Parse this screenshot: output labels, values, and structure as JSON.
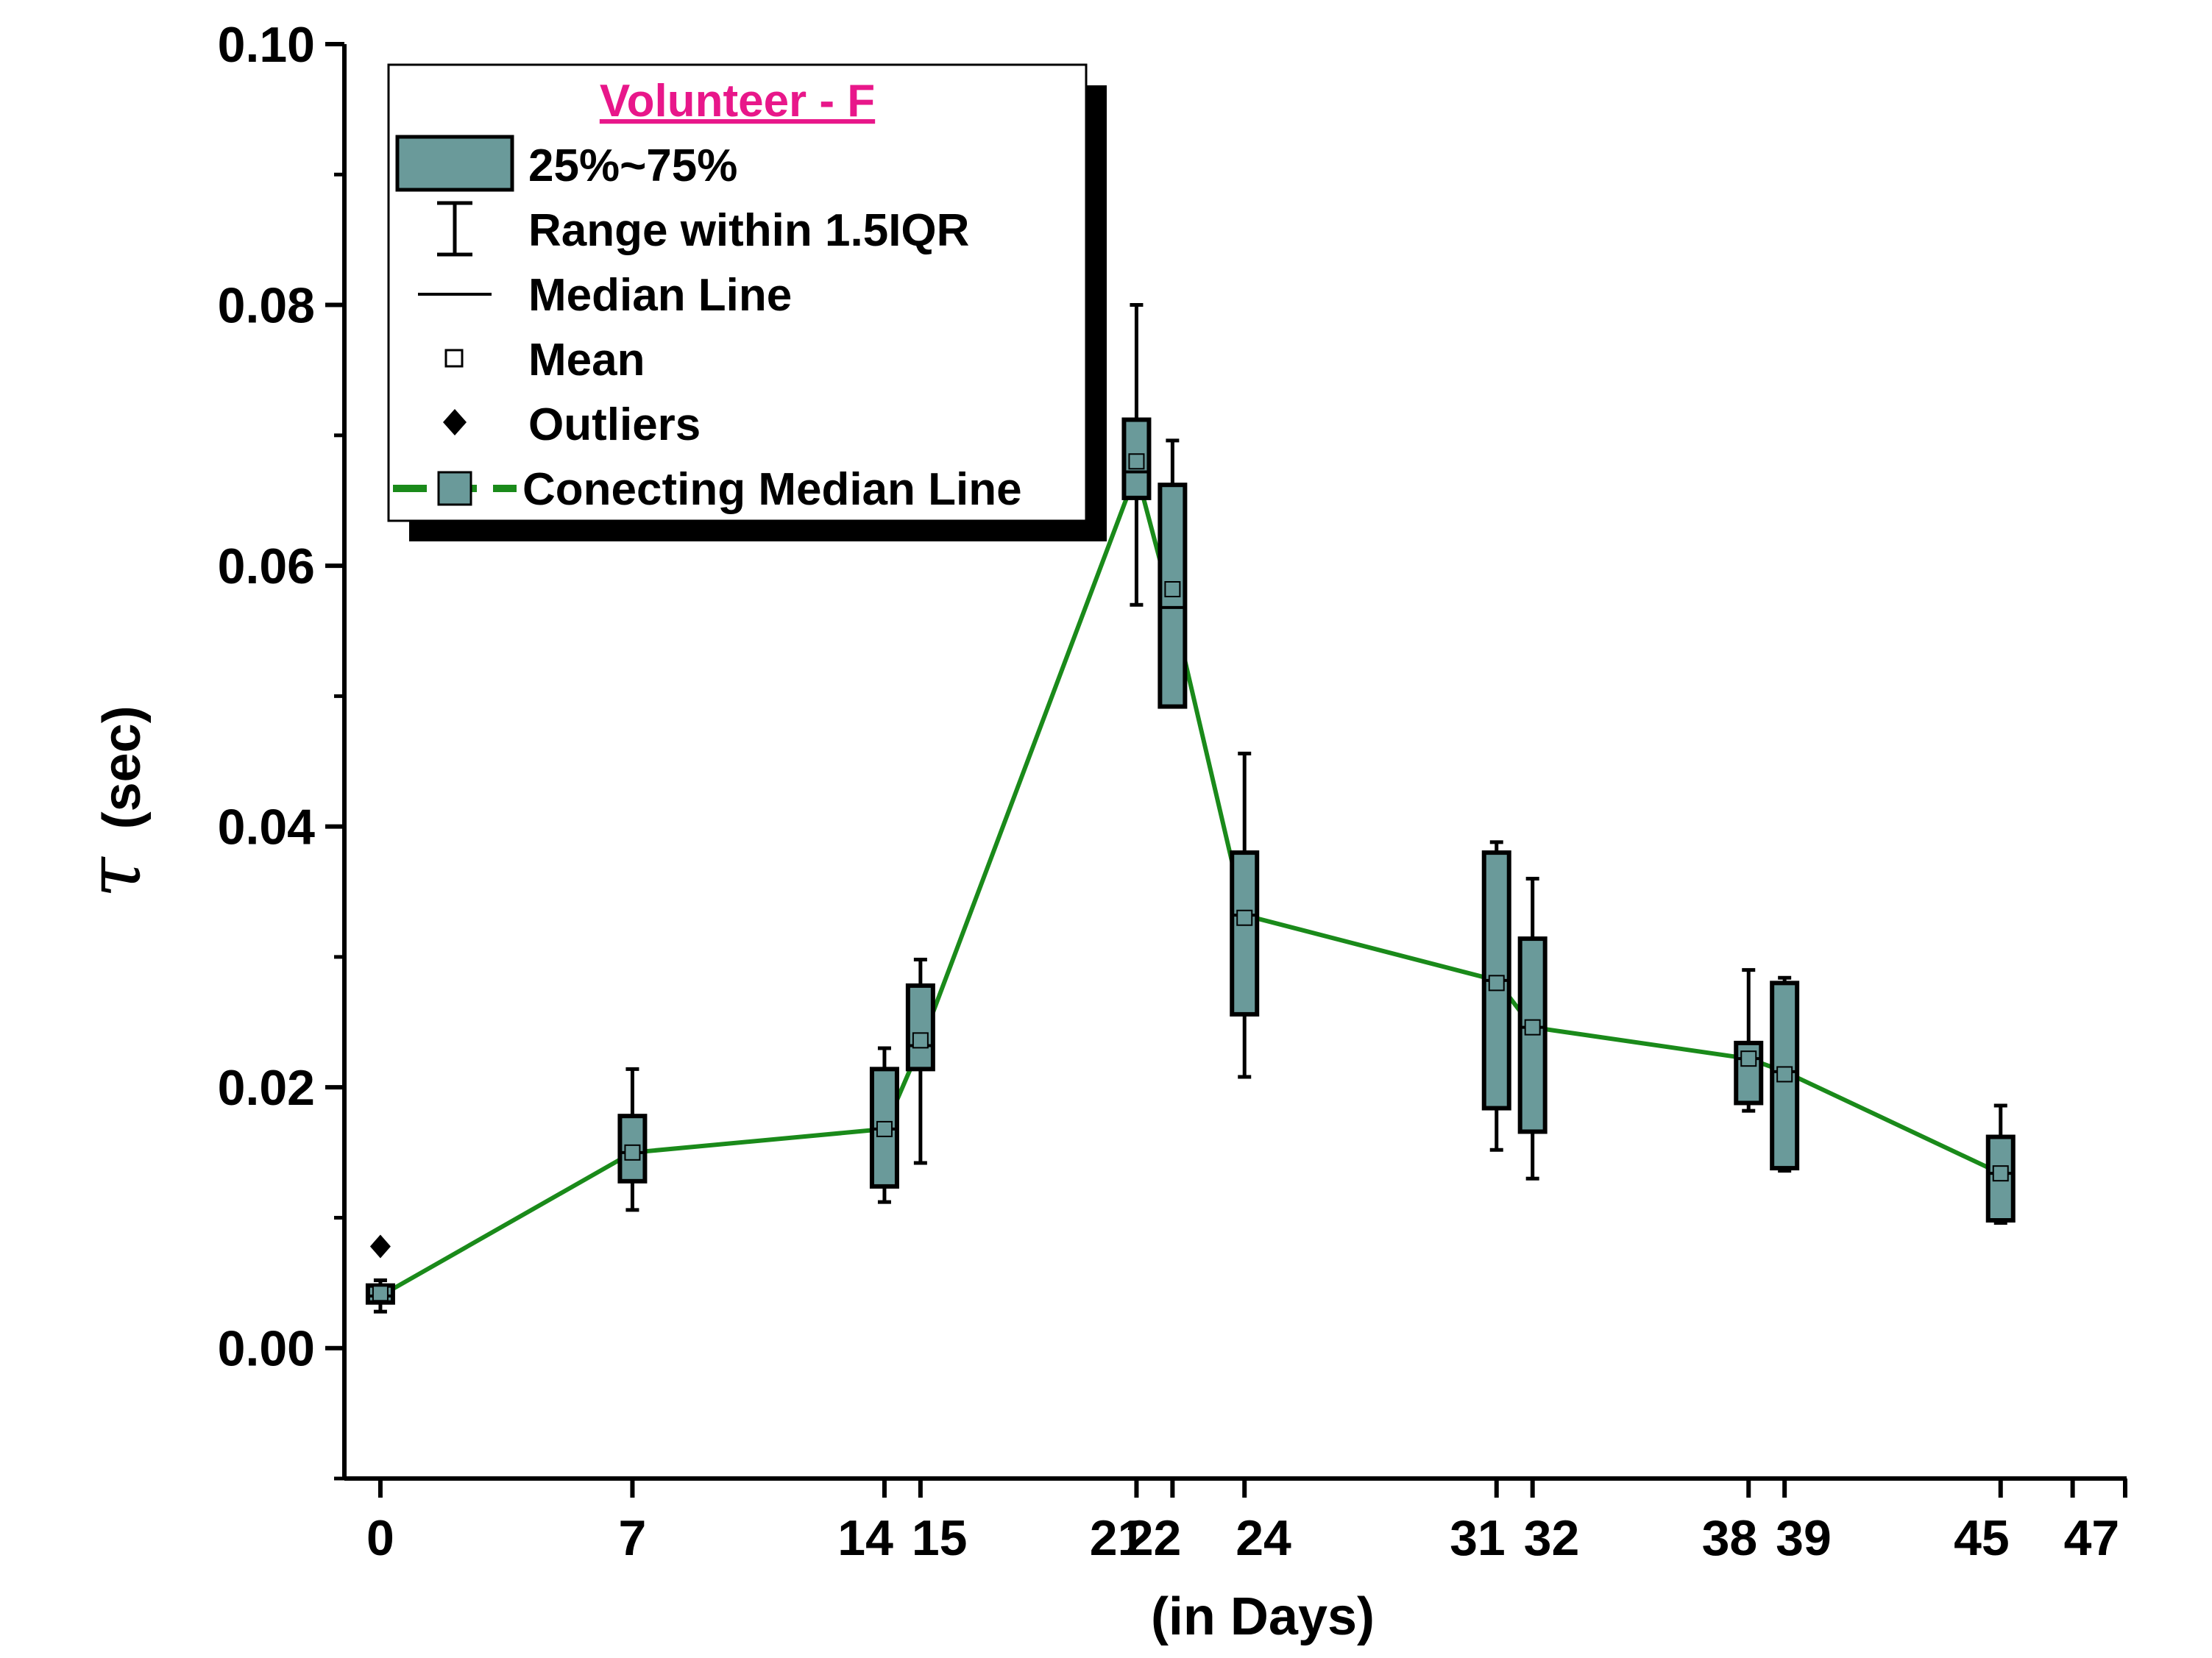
{
  "chart_data": {
    "type": "box",
    "xlabel": "(in Days)",
    "ylabel_symbol": "τ",
    "ylabel_unit": "(sec)",
    "xlim": [
      -1,
      48.5
    ],
    "ylim": [
      -0.01,
      0.1
    ],
    "y_ticks": [
      "0.00",
      "0.02",
      "0.04",
      "0.06",
      "0.08",
      "0.10"
    ],
    "y_tick_values": [
      0,
      0.02,
      0.04,
      0.06,
      0.08,
      0.1
    ],
    "x_ticks": [
      0,
      7,
      14,
      15,
      21,
      22,
      24,
      31,
      32,
      38,
      39,
      45,
      47
    ],
    "x_tick_labels": [
      "0",
      "7",
      "14",
      "15",
      "21",
      "22",
      "24",
      "31",
      "32",
      "38",
      "39",
      "45",
      "47"
    ],
    "box_color": "#6a9a9a",
    "line_color": "#1a8a1a",
    "boxes": [
      {
        "day": 0,
        "whisker_low": 0.0028,
        "q1": 0.0035,
        "median": 0.004,
        "q3": 0.0048,
        "whisker_high": 0.0052,
        "mean": 0.0042
      },
      {
        "day": 7,
        "whisker_low": 0.0106,
        "q1": 0.0128,
        "median": 0.015,
        "q3": 0.0178,
        "whisker_high": 0.0214,
        "mean": 0.015
      },
      {
        "day": 14,
        "whisker_low": 0.0112,
        "q1": 0.0124,
        "median": 0.0168,
        "q3": 0.0214,
        "whisker_high": 0.023,
        "mean": 0.0168
      },
      {
        "day": 15,
        "whisker_low": 0.0142,
        "q1": 0.0214,
        "median": 0.0232,
        "q3": 0.0278,
        "whisker_high": 0.0298,
        "mean": 0.0236
      },
      {
        "day": 21,
        "whisker_low": 0.057,
        "q1": 0.0652,
        "median": 0.0672,
        "q3": 0.0712,
        "whisker_high": 0.08,
        "mean": 0.068
      },
      {
        "day": 22,
        "whisker_low": 0.0492,
        "q1": 0.0492,
        "median": 0.0568,
        "q3": 0.0662,
        "whisker_high": 0.0696,
        "mean": 0.0582
      },
      {
        "day": 24,
        "whisker_low": 0.0208,
        "q1": 0.0256,
        "median": 0.0332,
        "q3": 0.038,
        "whisker_high": 0.0456,
        "mean": 0.033
      },
      {
        "day": 31,
        "whisker_low": 0.0152,
        "q1": 0.0184,
        "median": 0.0282,
        "q3": 0.038,
        "whisker_high": 0.0388,
        "mean": 0.028
      },
      {
        "day": 32,
        "whisker_low": 0.013,
        "q1": 0.0166,
        "median": 0.0246,
        "q3": 0.0314,
        "whisker_high": 0.036,
        "mean": 0.0246
      },
      {
        "day": 38,
        "whisker_low": 0.0182,
        "q1": 0.0188,
        "median": 0.0222,
        "q3": 0.0234,
        "whisker_high": 0.029,
        "mean": 0.0222
      },
      {
        "day": 39,
        "whisker_low": 0.0136,
        "q1": 0.0138,
        "median": 0.0212,
        "q3": 0.028,
        "whisker_high": 0.0284,
        "mean": 0.021
      },
      {
        "day": 45,
        "whisker_low": 0.0096,
        "q1": 0.0098,
        "median": 0.0134,
        "q3": 0.0162,
        "whisker_high": 0.0186,
        "mean": 0.0134
      }
    ],
    "outliers": [
      {
        "day": 0,
        "value": 0.0078
      }
    ],
    "median_line_label": "Conecting Median Line",
    "legend": {
      "title": "Volunteer - F",
      "title_color": "#e8178a",
      "placement": "top-left",
      "entries": [
        "25%~75%",
        "Range within 1.5IQR",
        "Median Line",
        "Mean",
        "Outliers",
        "Conecting Median Line"
      ]
    }
  }
}
